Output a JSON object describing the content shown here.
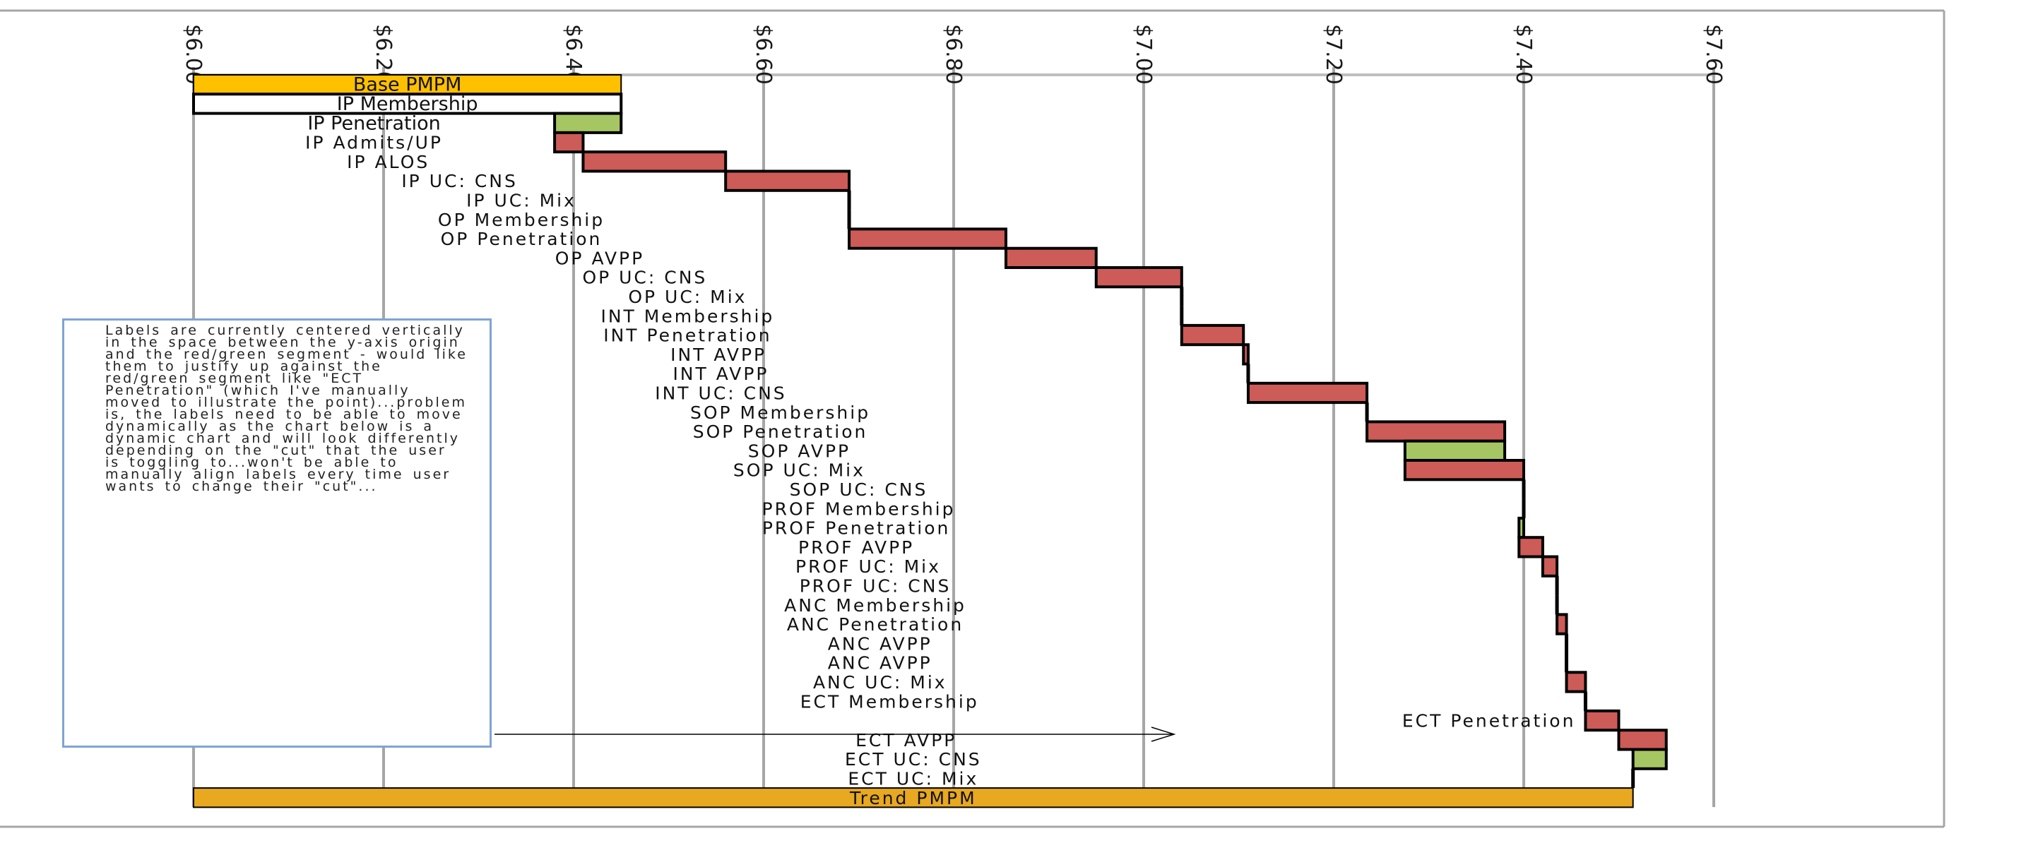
{
  "chart_data": {
    "type": "bar",
    "subtype": "waterfall",
    "orientation": "horizontal",
    "x_axis": {
      "ticks": [
        "$6.00",
        "$6.20",
        "$6.40",
        "$6.60",
        "$6.80",
        "$7.00",
        "$7.20",
        "$7.40",
        "$7.60"
      ],
      "tick_values": [
        6.0,
        6.2,
        6.4,
        6.6,
        6.8,
        7.0,
        7.2,
        7.4,
        7.6
      ],
      "range": [
        6.0,
        7.6
      ],
      "position": "top",
      "tick_label_rotation": "vertical",
      "grid": true
    },
    "colors": {
      "base": "#FFC000",
      "total": "#E8A820",
      "increase": "#CD5B57",
      "decrease": "#A5C663",
      "blank": "#FFFFFF"
    },
    "rows": [
      {
        "label": "Base PMPM",
        "from": 6.0,
        "to": 6.45,
        "kind": "base"
      },
      {
        "label": "IP Membership",
        "from": 6.0,
        "to": 6.45,
        "kind": "blank"
      },
      {
        "label": "IP Penetration",
        "from": 6.45,
        "to": 6.38,
        "kind": "decrease"
      },
      {
        "label": "IP Admits/UP",
        "from": 6.38,
        "to": 6.41,
        "kind": "increase"
      },
      {
        "label": "IP ALOS",
        "from": 6.41,
        "to": 6.56,
        "kind": "increase"
      },
      {
        "label": "IP UC: CNS",
        "from": 6.56,
        "to": 6.69,
        "kind": "increase"
      },
      {
        "label": "IP UC: Mix",
        "from": 6.69,
        "to": 6.69,
        "kind": "increase"
      },
      {
        "label": "OP Membership",
        "from": 6.69,
        "to": 6.69,
        "kind": "increase"
      },
      {
        "label": "OP Penetration",
        "from": 6.69,
        "to": 6.855,
        "kind": "increase"
      },
      {
        "label": "OP AVPP",
        "from": 6.855,
        "to": 6.95,
        "kind": "increase"
      },
      {
        "label": "OP UC: CNS",
        "from": 6.95,
        "to": 7.04,
        "kind": "increase"
      },
      {
        "label": "OP UC: Mix",
        "from": 7.04,
        "to": 7.04,
        "kind": "increase"
      },
      {
        "label": "INT Membership",
        "from": 7.04,
        "to": 7.04,
        "kind": "increase"
      },
      {
        "label": "INT Penetration",
        "from": 7.04,
        "to": 7.105,
        "kind": "increase"
      },
      {
        "label": "INT AVPP",
        "from": 7.105,
        "to": 7.11,
        "kind": "increase"
      },
      {
        "label": "INT AVPP",
        "from": 7.11,
        "to": 7.11,
        "kind": "increase"
      },
      {
        "label": "INT UC: CNS",
        "from": 7.11,
        "to": 7.235,
        "kind": "increase"
      },
      {
        "label": "SOP Membership",
        "from": 7.235,
        "to": 7.235,
        "kind": "increase"
      },
      {
        "label": "SOP Penetration",
        "from": 7.235,
        "to": 7.38,
        "kind": "increase"
      },
      {
        "label": "SOP AVPP",
        "from": 7.38,
        "to": 7.275,
        "kind": "decrease"
      },
      {
        "label": "SOP UC: Mix",
        "from": 7.275,
        "to": 7.4,
        "kind": "increase"
      },
      {
        "label": "SOP UC: CNS",
        "from": 7.4,
        "to": 7.4,
        "kind": "increase"
      },
      {
        "label": "PROF Membership",
        "from": 7.4,
        "to": 7.4,
        "kind": "increase"
      },
      {
        "label": "PROF Penetration",
        "from": 7.4,
        "to": 7.395,
        "kind": "decrease"
      },
      {
        "label": "PROF AVPP",
        "from": 7.395,
        "to": 7.42,
        "kind": "increase"
      },
      {
        "label": "PROF UC: Mix",
        "from": 7.42,
        "to": 7.435,
        "kind": "increase"
      },
      {
        "label": "PROF UC: CNS",
        "from": 7.435,
        "to": 7.435,
        "kind": "increase"
      },
      {
        "label": "ANC Membership",
        "from": 7.435,
        "to": 7.435,
        "kind": "increase"
      },
      {
        "label": "ANC Penetration",
        "from": 7.435,
        "to": 7.445,
        "kind": "increase"
      },
      {
        "label": "ANC AVPP",
        "from": 7.445,
        "to": 7.445,
        "kind": "increase"
      },
      {
        "label": "ANC AVPP",
        "from": 7.445,
        "to": 7.445,
        "kind": "increase"
      },
      {
        "label": "ANC UC: Mix",
        "from": 7.445,
        "to": 7.465,
        "kind": "increase"
      },
      {
        "label": "ECT Membership",
        "from": 7.465,
        "to": 7.465,
        "kind": "increase"
      },
      {
        "label": "ECT Penetration",
        "from": 7.465,
        "to": 7.5,
        "kind": "increase",
        "label_position": "manual"
      },
      {
        "label": "ECT AVPP",
        "from": 7.5,
        "to": 7.55,
        "kind": "increase"
      },
      {
        "label": "ECT UC: CNS",
        "from": 7.55,
        "to": 7.515,
        "kind": "decrease"
      },
      {
        "label": "ECT UC: Mix",
        "from": 7.515,
        "to": 7.515,
        "kind": "increase"
      },
      {
        "label": "Trend PMPM",
        "from": 6.0,
        "to": 7.515,
        "kind": "total"
      }
    ]
  },
  "note": {
    "text": "Labels are currently centered vertically in the space between the y-axis origin and the red/green segment - would like them to justify up against the red/green segment like \"ECT Penetration\" (which I've manually moved to illustrate the point)...problem is, the labels need to be able to move dynamically as the chart below is a dynamic chart and will look differently depending on the \"cut\" that the user is toggling to...won't be able to manually align labels every time user wants to change their \"cut\"..."
  }
}
